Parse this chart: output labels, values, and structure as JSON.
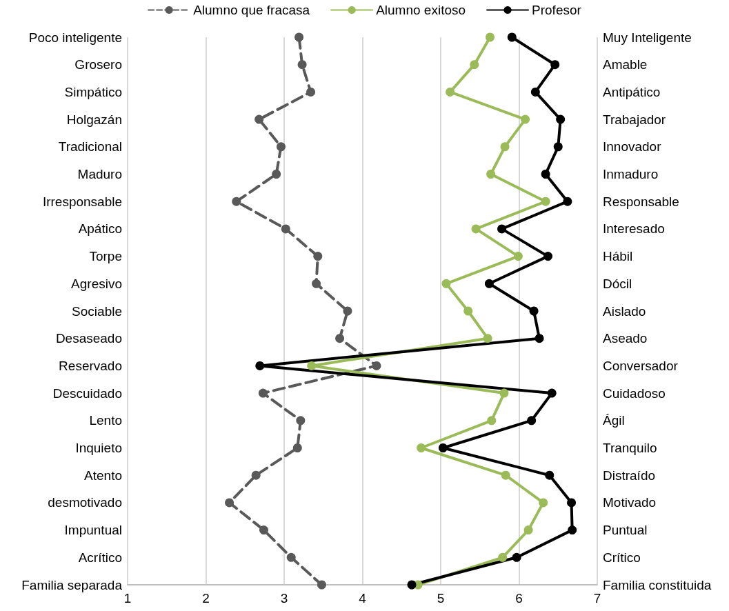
{
  "chart_data": {
    "type": "line",
    "orientation": "horizontal",
    "categories": [
      "Poco inteligente",
      "Grosero",
      "Simpático",
      "Holgazán",
      "Tradicional",
      "Maduro",
      "Irresponsable",
      "Apático",
      "Torpe",
      "Agresivo",
      "Sociable",
      "Desaseado",
      "Reservado",
      "Descuidado",
      "Lento",
      "Inquieto",
      "Atento",
      "desmotivado",
      "Impuntual",
      "Acrítico",
      "Familia separada"
    ],
    "y2_categories": [
      "Muy Inteligente",
      "Amable",
      "Antipático",
      "Trabajador",
      "Innovador",
      "Inmaduro",
      "Responsable",
      "Interesado",
      "Hábil",
      "Dócil",
      "Aislado",
      "Aseado",
      "Conversador",
      "Cuidadoso",
      "Ágil",
      "Tranquilo",
      "Distraído",
      "Motivado",
      "Puntual",
      "Crítico",
      "Familia constituida"
    ],
    "series": [
      {
        "name": "Alumno que fracasa",
        "color": "#595959",
        "line_style": "dashed",
        "values": [
          3.19,
          3.23,
          3.34,
          2.68,
          2.96,
          2.9,
          2.39,
          3.02,
          3.43,
          3.41,
          3.81,
          3.71,
          4.18,
          2.73,
          3.21,
          3.17,
          2.64,
          2.3,
          2.74,
          3.09,
          3.48
        ]
      },
      {
        "name": "Alumno exitoso",
        "color": "#9bbb59",
        "line_style": "solid",
        "values": [
          5.63,
          5.43,
          5.12,
          6.08,
          5.82,
          5.64,
          6.34,
          5.45,
          5.99,
          5.07,
          5.35,
          5.6,
          3.35,
          5.81,
          5.65,
          4.75,
          5.83,
          6.31,
          6.12,
          5.79,
          4.71
        ]
      },
      {
        "name": "Profesor",
        "color": "#000000",
        "line_style": "solid",
        "values": [
          5.91,
          6.46,
          6.21,
          6.53,
          6.5,
          6.34,
          6.62,
          5.78,
          6.37,
          5.62,
          6.19,
          6.26,
          2.69,
          6.42,
          6.16,
          5.03,
          6.39,
          6.67,
          6.68,
          5.97,
          4.63
        ]
      }
    ],
    "xlim": [
      1,
      7
    ],
    "xticks": [
      1,
      2,
      3,
      4,
      5,
      6,
      7
    ],
    "grid": "x",
    "legend": "top",
    "marker": "circle"
  }
}
